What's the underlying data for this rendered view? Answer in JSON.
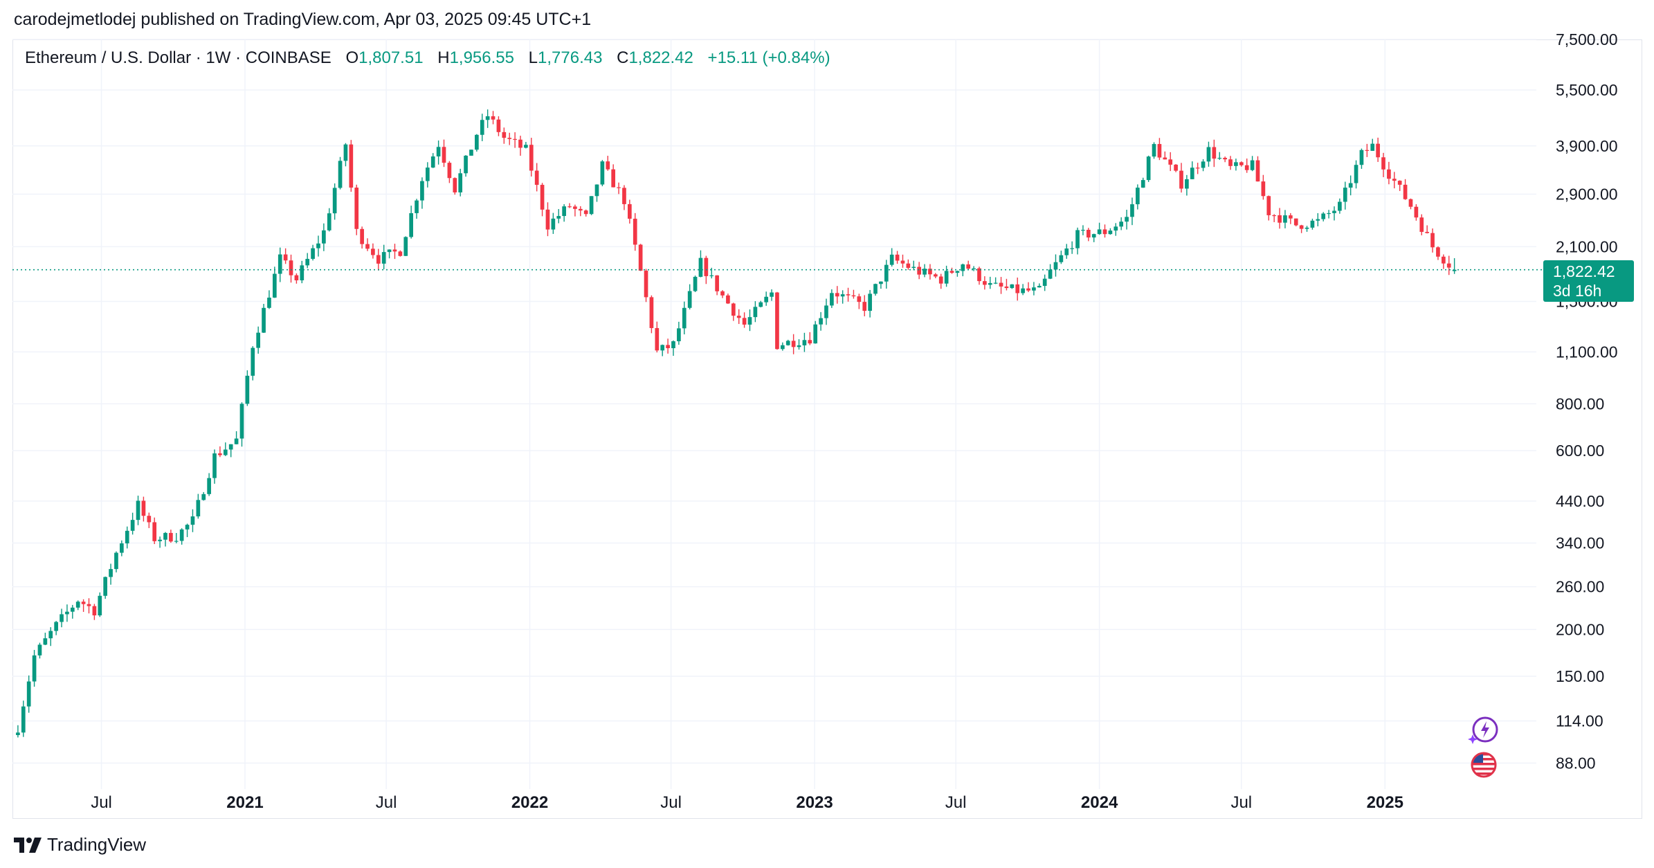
{
  "publisher_line": "carodejmetlodej published on TradingView.com, Apr 03, 2025 09:45 UTC+1",
  "legend": {
    "symbol": "Ethereum / U.S. Dollar · 1W · COINBASE",
    "open_label": "O",
    "open_value": "1,807.51",
    "high_label": "H",
    "high_value": "1,956.55",
    "low_label": "L",
    "low_value": "1,776.43",
    "close_label": "C",
    "close_value": "1,822.42",
    "change": "+15.11 (+0.84%)"
  },
  "last_price": {
    "value": "1,822.42",
    "countdown": "3d 16h"
  },
  "brand": "TradingView",
  "colors": {
    "up": "#089981",
    "down": "#f23645",
    "grid": "#f0f3fa",
    "text": "#131722",
    "last_price_line": "#089981"
  },
  "icons": [
    "lightning-assistant-icon",
    "us-flag-icon",
    "tradingview-logo-icon"
  ],
  "chart_data": {
    "type": "candlestick",
    "interval": "1W",
    "y_scale": "log",
    "ylim": [
      75,
      7500
    ],
    "xlim": [
      "2020-03-09",
      "2025-07-14"
    ],
    "grid": true,
    "y_ticks": [
      "7,500.00",
      "5,500.00",
      "3,900.00",
      "2,900.00",
      "2,100.00",
      "1,500.00",
      "1,100.00",
      "800.00",
      "600.00",
      "440.00",
      "340.00",
      "260.00",
      "200.00",
      "150.00",
      "114.00",
      "88.00"
    ],
    "x_ticks": [
      {
        "label": "Jul",
        "date": "2020-07-01",
        "bold": false
      },
      {
        "label": "2021",
        "date": "2021-01-01",
        "bold": true
      },
      {
        "label": "Jul",
        "date": "2021-07-01",
        "bold": false
      },
      {
        "label": "2022",
        "date": "2022-01-01",
        "bold": true
      },
      {
        "label": "Jul",
        "date": "2022-07-01",
        "bold": false
      },
      {
        "label": "2023",
        "date": "2023-01-01",
        "bold": true
      },
      {
        "label": "Jul",
        "date": "2023-07-01",
        "bold": false
      },
      {
        "label": "2024",
        "date": "2024-01-01",
        "bold": true
      },
      {
        "label": "Jul",
        "date": "2024-07-01",
        "bold": false
      },
      {
        "label": "2025",
        "date": "2025-01-01",
        "bold": true
      }
    ],
    "anchors": [
      [
        "2020-03-16",
        110
      ],
      [
        "2020-04-06",
        170
      ],
      [
        "2020-05-04",
        205
      ],
      [
        "2020-06-01",
        240
      ],
      [
        "2020-06-22",
        225
      ],
      [
        "2020-07-20",
        320
      ],
      [
        "2020-08-17",
        430
      ],
      [
        "2020-09-07",
        350
      ],
      [
        "2020-10-05",
        355
      ],
      [
        "2020-10-26",
        390
      ],
      [
        "2020-11-23",
        580
      ],
      [
        "2020-12-21",
        640
      ],
      [
        "2021-01-11",
        1150
      ],
      [
        "2021-02-15",
        1950
      ],
      [
        "2021-03-08",
        1720
      ],
      [
        "2021-04-12",
        2300
      ],
      [
        "2021-05-10",
        3950
      ],
      [
        "2021-05-24",
        2300
      ],
      [
        "2021-06-21",
        1950
      ],
      [
        "2021-07-19",
        2050
      ],
      [
        "2021-08-16",
        3200
      ],
      [
        "2021-09-06",
        3950
      ],
      [
        "2021-09-27",
        3000
      ],
      [
        "2021-10-25",
        4200
      ],
      [
        "2021-11-08",
        4700
      ],
      [
        "2021-11-29",
        4100
      ],
      [
        "2021-12-27",
        3800
      ],
      [
        "2022-01-24",
        2400
      ],
      [
        "2022-02-21",
        2700
      ],
      [
        "2022-03-14",
        2500
      ],
      [
        "2022-04-04",
        3450
      ],
      [
        "2022-05-02",
        2800
      ],
      [
        "2022-05-23",
        1800
      ],
      [
        "2022-06-13",
        1100
      ],
      [
        "2022-07-04",
        1150
      ],
      [
        "2022-08-08",
        1900
      ],
      [
        "2022-09-05",
        1550
      ],
      [
        "2022-10-03",
        1300
      ],
      [
        "2022-11-07",
        1580
      ],
      [
        "2022-11-14",
        1150
      ],
      [
        "2022-12-26",
        1200
      ],
      [
        "2023-01-23",
        1600
      ],
      [
        "2023-03-06",
        1450
      ],
      [
        "2023-04-10",
        1950
      ],
      [
        "2023-05-15",
        1800
      ],
      [
        "2023-06-12",
        1720
      ],
      [
        "2023-07-10",
        1900
      ],
      [
        "2023-08-14",
        1650
      ],
      [
        "2023-09-18",
        1600
      ],
      [
        "2023-10-16",
        1600
      ],
      [
        "2023-10-30",
        1800
      ],
      [
        "2023-12-04",
        2250
      ],
      [
        "2024-01-08",
        2300
      ],
      [
        "2024-02-05",
        2500
      ],
      [
        "2024-03-11",
        3900
      ],
      [
        "2024-04-15",
        3100
      ],
      [
        "2024-05-20",
        3800
      ],
      [
        "2024-06-17",
        3400
      ],
      [
        "2024-07-15",
        3450
      ],
      [
        "2024-08-05",
        2600
      ],
      [
        "2024-09-09",
        2400
      ],
      [
        "2024-10-07",
        2450
      ],
      [
        "2024-11-04",
        2700
      ],
      [
        "2024-12-02",
        3700
      ],
      [
        "2024-12-16",
        3900
      ],
      [
        "2025-01-06",
        3300
      ],
      [
        "2025-02-03",
        2700
      ],
      [
        "2025-03-03",
        2100
      ],
      [
        "2025-03-31",
        1822.42
      ]
    ],
    "last_candle": {
      "open": 1807.51,
      "high": 1956.55,
      "low": 1776.43,
      "close": 1822.42
    }
  }
}
